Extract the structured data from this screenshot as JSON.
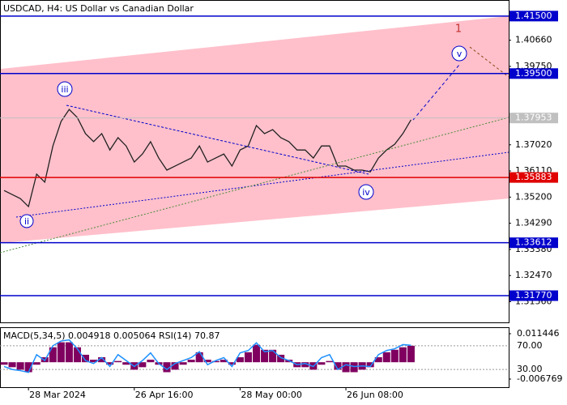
{
  "chart_data": {
    "type": "line",
    "title": "USDCAD, H4:  US Dollar vs Canadian Dollar",
    "categories": [
      null,
      null,
      null,
      null,
      null,
      null,
      null,
      null,
      null,
      null,
      null,
      null,
      null,
      null,
      null,
      null,
      null,
      null,
      null,
      null,
      null,
      null,
      null,
      null,
      null,
      null,
      null,
      null,
      null,
      null,
      null,
      null,
      null,
      null,
      null,
      null,
      null,
      null,
      null,
      null,
      null,
      null,
      null,
      null,
      null,
      null,
      null,
      null,
      null,
      null,
      null
    ],
    "series": [
      {
        "color": "#222222",
        "values": [
          1.3543,
          1.3529,
          1.3515,
          1.3487,
          1.36,
          1.3572,
          1.3698,
          1.3783,
          1.3825,
          1.3797,
          1.3741,
          1.3713,
          1.3741,
          1.3684,
          1.3727,
          1.3698,
          1.3642,
          1.367,
          1.3713,
          1.3656,
          1.3614,
          1.3628,
          1.3642,
          1.3656,
          1.3698,
          1.3642,
          1.3656,
          1.367,
          1.3628,
          1.3684,
          1.3698,
          1.3769,
          1.3741,
          1.3755,
          1.3727,
          1.3713,
          1.3684,
          1.3684,
          1.3656,
          1.3698,
          1.3698,
          1.3628,
          1.3628,
          1.3614,
          1.3614,
          1.3608,
          1.3656,
          1.3684,
          1.3704,
          1.3741,
          1.3789
        ]
      }
    ],
    "xlim": [
      -0.5,
      62
    ],
    "xticks": [
      {
        "value": 3,
        "label": "28 Mar 2024"
      },
      {
        "value": 16,
        "label": "26 Apr 16:00"
      },
      {
        "value": 29,
        "label": "28 May 00:00"
      },
      {
        "value": 42,
        "label": "26 Jun 08:00"
      }
    ],
    "ylim": [
      1.3084,
      1.4206
    ],
    "yticks": [
      {
        "value": 1.4066,
        "label": "1.40660"
      },
      {
        "value": 1.3975,
        "label": "1.39750"
      },
      {
        "value": 1.3702,
        "label": "1.37020"
      },
      {
        "value": 1.3611,
        "label": "1.36110"
      },
      {
        "value": 1.352,
        "label": "1.35200"
      },
      {
        "value": 1.3429,
        "label": "1.34290"
      },
      {
        "value": 1.3338,
        "label": "1.33380"
      },
      {
        "value": 1.3247,
        "label": "1.32470"
      },
      {
        "value": 1.3156,
        "label": "1.31560"
      }
    ],
    "levels": [
      {
        "value": 1.415,
        "label": "1.41500",
        "color": "#0000cc"
      },
      {
        "value": 1.395,
        "label": "1.39500",
        "color": "#0000cc"
      },
      {
        "value": 1.35883,
        "label": "1.35883",
        "color": "#e00000"
      },
      {
        "value": 1.33612,
        "label": "1.33612",
        "color": "#0000cc"
      },
      {
        "value": 1.3177,
        "label": "1.31770",
        "color": "#0000cc"
      }
    ],
    "current_price": 1.37953,
    "channel": {
      "color": "#ffc0cb",
      "upper": [
        1.3966,
        1.415
      ],
      "lower": [
        1.336,
        1.3515
      ]
    },
    "wave_labels": [
      "ii",
      "iii",
      "iv",
      "v",
      "1"
    ],
    "indicator": {
      "title": "MACD(5,34,5) 0.004918 0.005064 RSI(14) 70.87",
      "ylim": [
        -0.010022,
        0.013723
      ],
      "yticks": [
        0.011446,
        -0.006769
      ],
      "y2lim": [
        0,
        100
      ],
      "y2ticks": [
        {
          "value": 70,
          "label": "70.00"
        },
        {
          "value": 30,
          "label": "30.00"
        }
      ],
      "series": [
        {
          "color": "#800060",
          "values": [
            -0.001,
            -0.002,
            -0.003,
            -0.004,
            -0.001,
            0.002,
            0.006,
            0.008,
            0.008,
            0.006,
            0.003,
            0.001,
            0.002,
            -0.001,
            0.0005,
            -0.001,
            -0.003,
            -0.002,
            0.001,
            -0.001,
            -0.004,
            -0.003,
            -0.001,
            0.001,
            0.004,
            0.001,
            0.0005,
            0.001,
            -0.001,
            0.002,
            0.004,
            0.007,
            0.005,
            0.005,
            0.003,
            0.001,
            -0.002,
            -0.002,
            -0.003,
            -0.001,
            0.0005,
            -0.003,
            -0.004,
            -0.004,
            -0.003,
            -0.002,
            0.002,
            0.004,
            0.005,
            0.006,
            0.0066
          ]
        },
        {
          "color": "#1e90ff",
          "axis": "y2",
          "values": [
            35,
            30,
            28,
            25,
            55,
            45,
            70,
            78,
            80,
            65,
            45,
            40,
            50,
            35,
            55,
            45,
            35,
            45,
            58,
            40,
            30,
            40,
            45,
            50,
            60,
            38,
            45,
            50,
            35,
            58,
            62,
            75,
            60,
            62,
            50,
            45,
            38,
            40,
            35,
            50,
            55,
            30,
            38,
            35,
            36,
            35,
            55,
            62,
            65,
            72,
            70.87
          ]
        }
      ]
    }
  }
}
